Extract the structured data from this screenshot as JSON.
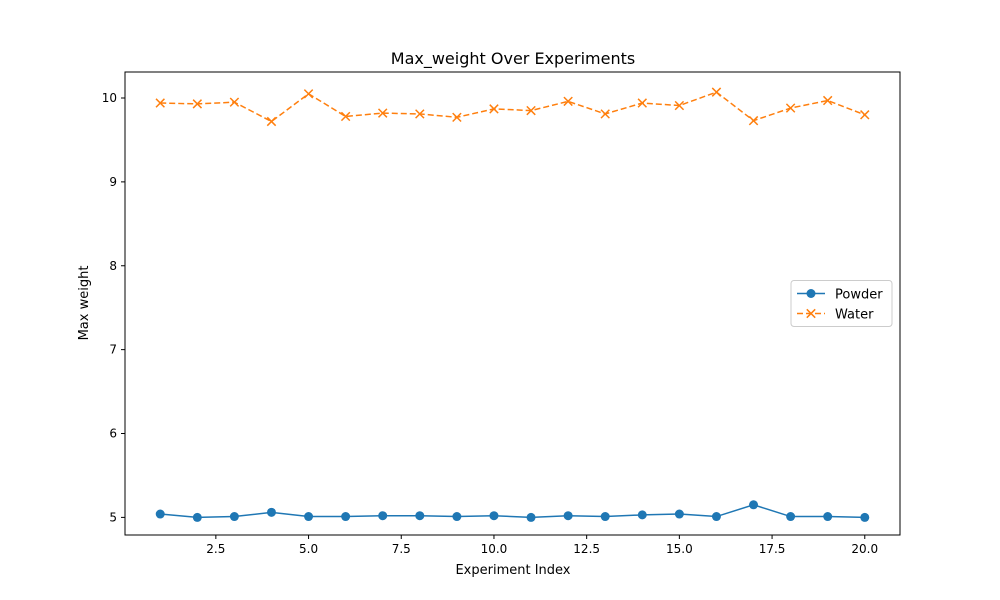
{
  "chart_data": {
    "type": "line",
    "title": "Max_weight Over Experiments",
    "xlabel": "Experiment Index",
    "ylabel": "Max weight",
    "xlim": [
      0.05,
      20.95
    ],
    "ylim": [
      4.79,
      10.31
    ],
    "xticks": [
      2.5,
      5.0,
      7.5,
      10.0,
      12.5,
      15.0,
      17.5,
      20.0
    ],
    "xtick_labels": [
      "2.5",
      "5.0",
      "7.5",
      "10.0",
      "12.5",
      "15.0",
      "17.5",
      "20.0"
    ],
    "yticks": [
      5,
      6,
      7,
      8,
      9,
      10
    ],
    "ytick_labels": [
      "5",
      "6",
      "7",
      "8",
      "9",
      "10"
    ],
    "grid": false,
    "legend_position": "center-right",
    "x": [
      1,
      2,
      3,
      4,
      5,
      6,
      7,
      8,
      9,
      10,
      11,
      12,
      13,
      14,
      15,
      16,
      17,
      18,
      19,
      20
    ],
    "series": [
      {
        "name": "Powder",
        "color": "#1f77b4",
        "marker": "circle",
        "linestyle": "solid",
        "values": [
          5.04,
          5.0,
          5.01,
          5.06,
          5.01,
          5.01,
          5.02,
          5.02,
          5.01,
          5.02,
          5.0,
          5.02,
          5.01,
          5.03,
          5.04,
          5.01,
          5.15,
          5.01,
          5.01,
          5.0
        ]
      },
      {
        "name": "Water",
        "color": "#ff7f0e",
        "marker": "x",
        "linestyle": "dashed",
        "values": [
          9.94,
          9.93,
          9.95,
          9.72,
          10.05,
          9.78,
          9.82,
          9.81,
          9.77,
          9.87,
          9.85,
          9.96,
          9.81,
          9.94,
          9.91,
          10.07,
          9.73,
          9.88,
          9.97,
          9.8
        ]
      }
    ]
  }
}
